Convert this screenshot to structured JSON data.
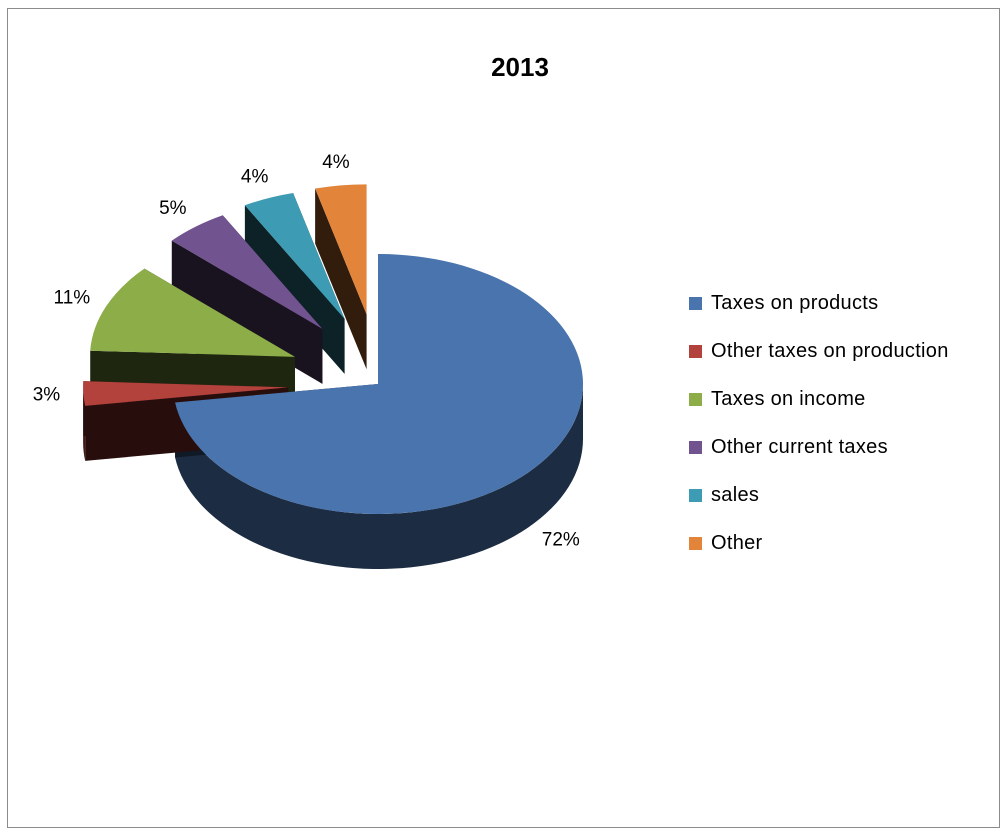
{
  "chart_data": {
    "type": "pie",
    "title": "2013",
    "slices": [
      {
        "label": "Taxes on products",
        "value": 72,
        "display": "72%",
        "color": "#4a74ad"
      },
      {
        "label": "Other taxes on production",
        "value": 3,
        "display": "3%",
        "color": "#b3413c"
      },
      {
        "label": "Taxes on income",
        "value": 11,
        "display": "11%",
        "color": "#8cad48"
      },
      {
        "label": "Other current taxes",
        "value": 5,
        "display": "5%",
        "color": "#71538f"
      },
      {
        "label": "sales",
        "value": 4,
        "display": "4%",
        "color": "#3d9bb3"
      },
      {
        "label": "Other",
        "value": 4,
        "display": "4%",
        "color": "#e2853a"
      }
    ],
    "legend_position": "right",
    "exploded_3d": true
  }
}
